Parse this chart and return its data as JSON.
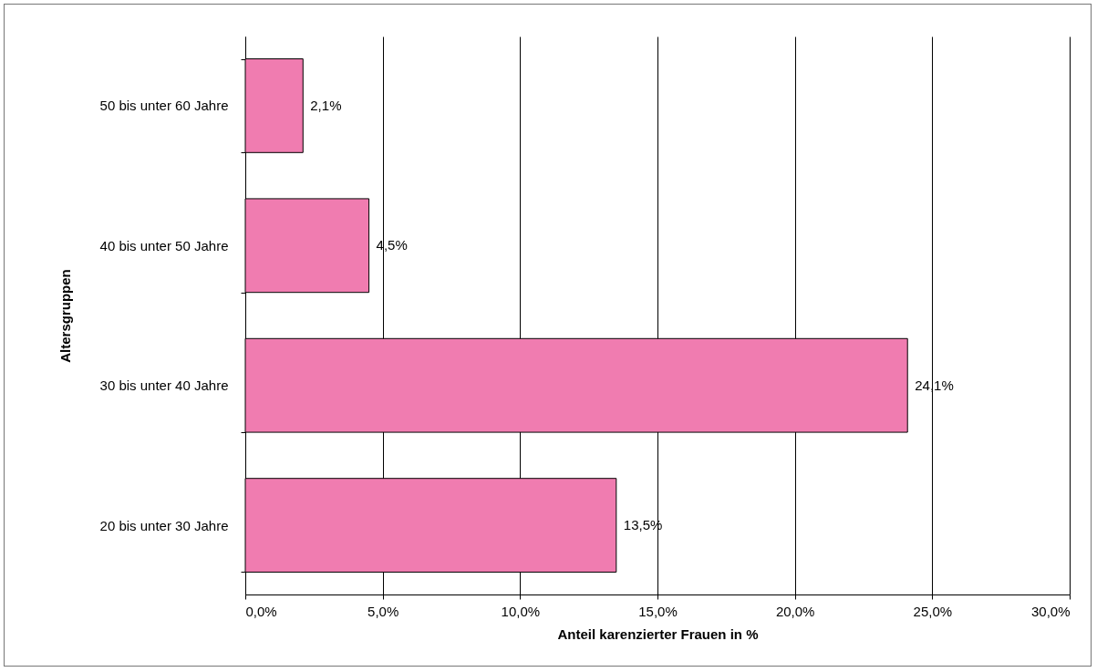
{
  "chart_data": {
    "type": "bar",
    "orientation": "horizontal",
    "xlabel": "Anteil karenzierter Frauen in %",
    "ylabel": "Altersgruppen",
    "categories": [
      "50 bis unter 60 Jahre",
      "40 bis unter 50 Jahre",
      "30 bis unter 40 Jahre",
      "20 bis unter 30 Jahre"
    ],
    "values": [
      2.1,
      4.5,
      24.1,
      13.5
    ],
    "value_labels": [
      "2,1%",
      "4,5%",
      "24,1%",
      "13,5%"
    ],
    "color": "#f07cb0",
    "xlim": [
      0,
      30
    ],
    "xticks": [
      {
        "value": 0,
        "label": "0,0%"
      },
      {
        "value": 5,
        "label": "5,0%"
      },
      {
        "value": 10,
        "label": "10,0%"
      },
      {
        "value": 15,
        "label": "15,0%"
      },
      {
        "value": 20,
        "label": "20,0%"
      },
      {
        "value": 25,
        "label": "25,0%"
      },
      {
        "value": 30,
        "label": "30,0%"
      }
    ],
    "grid": "x"
  }
}
